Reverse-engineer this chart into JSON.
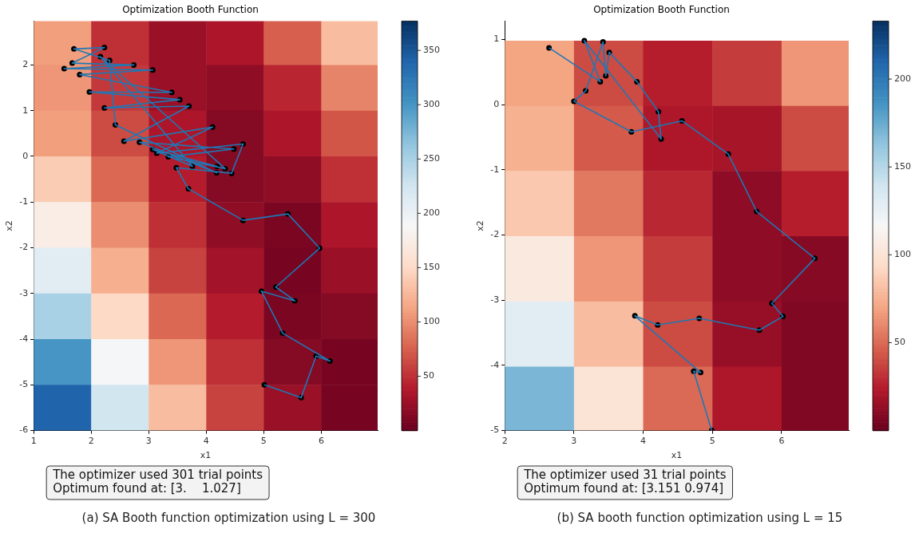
{
  "chart_data": [
    {
      "type": "heatmap",
      "title": "Optimization Booth Function",
      "xlabel": "x1",
      "ylabel": "x2",
      "xlim": [
        1,
        6.98
      ],
      "ylim": [
        -6,
        2.96
      ],
      "xticks": [
        1,
        2,
        3,
        4,
        5,
        6
      ],
      "yticks": [
        -6,
        -5,
        -4,
        -3,
        -2,
        -1,
        0,
        1,
        2
      ],
      "x": [
        1.5,
        2.5,
        3.5,
        4.5,
        5.5,
        6.5
      ],
      "y": [
        2.5,
        1.5,
        0.5,
        -0.5,
        -1.5,
        -2.5,
        -3.5,
        -4.5,
        -5.5
      ],
      "cells": [
        [
          110,
          50,
          25,
          35,
          75,
          130
        ],
        [
          105,
          55,
          25,
          20,
          45,
          95
        ],
        [
          110,
          65,
          35,
          15,
          35,
          70
        ],
        [
          140,
          80,
          40,
          15,
          20,
          50
        ],
        [
          175,
          100,
          50,
          20,
          10,
          35
        ],
        [
          210,
          120,
          60,
          30,
          8,
          25
        ],
        [
          250,
          150,
          80,
          40,
          10,
          15
        ],
        [
          300,
          190,
          105,
          50,
          15,
          8
        ],
        [
          340,
          225,
          130,
          60,
          25,
          8
        ]
      ],
      "clim": [
        0,
        377
      ],
      "cticks": [
        50,
        100,
        150,
        200,
        250,
        300,
        350
      ],
      "grid": false,
      "legend": false,
      "series": [
        {
          "type": "scatter",
          "color": "#000000",
          "marker": "circle",
          "x": [
            5.01,
            5.65,
            5.91,
            6.15,
            5.33,
            4.96,
            5.54,
            5.21,
            5.97,
            5.42,
            4.64,
            3.69,
            3.48,
            4.44,
            4.64,
            3.14,
            4.11,
            2.57,
            3.7,
            2.23,
            3.54,
            1.97,
            3.4,
            1.8,
            3.07,
            1.53,
            2.74,
            1.67,
            2.23,
            1.7,
            2.32,
            2.42,
            4.18,
            2.84,
            4.48,
            3.34,
            4.33,
            2.16,
            3.76,
            3.07,
            4.19
          ],
          "values": [
            -5.0,
            -5.28,
            -4.37,
            -4.48,
            -3.87,
            -2.95,
            -3.16,
            -2.86,
            -2.01,
            -1.26,
            -1.4,
            -0.71,
            -0.25,
            -0.37,
            0.27,
            0.07,
            0.64,
            0.33,
            1.1,
            1.06,
            1.24,
            1.41,
            1.4,
            1.79,
            1.89,
            1.92,
            2.0,
            2.04,
            2.38,
            2.35,
            2.1,
            0.69,
            -0.36,
            0.31,
            0.16,
            -0.01,
            -0.27,
            2.18,
            -0.22,
            0.15,
            -0.22
          ]
        },
        {
          "type": "line",
          "color": "#1f77b4",
          "marker": "none",
          "x": [
            5.01,
            5.65,
            5.91,
            6.15,
            5.33,
            4.96,
            5.54,
            5.21,
            5.97,
            5.42,
            4.64,
            3.69,
            3.48,
            4.44,
            4.64,
            3.14,
            4.11,
            2.57,
            3.7,
            2.23,
            3.54,
            1.97,
            3.4,
            1.8,
            3.07,
            1.53,
            2.74,
            1.67,
            2.23,
            1.7,
            2.32,
            2.42,
            4.18,
            2.84,
            4.48,
            3.34,
            4.33,
            2.16,
            3.76,
            3.07,
            4.19
          ],
          "values": [
            -5.0,
            -5.28,
            -4.37,
            -4.48,
            -3.87,
            -2.95,
            -3.16,
            -2.86,
            -2.01,
            -1.26,
            -1.4,
            -0.71,
            -0.25,
            -0.37,
            0.27,
            0.07,
            0.64,
            0.33,
            1.1,
            1.06,
            1.24,
            1.41,
            1.4,
            1.79,
            1.89,
            1.92,
            2.0,
            2.04,
            2.38,
            2.35,
            2.1,
            0.69,
            -0.36,
            0.31,
            0.16,
            -0.01,
            -0.27,
            2.18,
            -0.22,
            0.15,
            -0.22
          ]
        }
      ],
      "annotations": [
        "The optimizer used 301 trial points\nOptimum found at: [3.    1.027]",
        "(a) SA Booth function optimization using L = 300"
      ]
    },
    {
      "type": "heatmap",
      "title": "Optimization Booth Function",
      "xlabel": "x1",
      "ylabel": "x2",
      "xlim": [
        2,
        6.97
      ],
      "ylim": [
        -5,
        1.28
      ],
      "xticks": [
        2,
        3,
        4,
        5,
        6
      ],
      "yticks": [
        -5,
        -4,
        -3,
        -2,
        -1,
        0,
        1
      ],
      "x": [
        2.5,
        3.5,
        4.5,
        5.5,
        6.5
      ],
      "y": [
        0.48,
        -0.52,
        -1.52,
        -2.52,
        -3.52,
        -4.52
      ],
      "cells": [
        [
          70,
          40,
          25,
          35,
          65
        ],
        [
          75,
          45,
          22,
          20,
          40
        ],
        [
          85,
          55,
          28,
          12,
          25
        ],
        [
          105,
          65,
          35,
          12,
          10
        ],
        [
          130,
          80,
          40,
          15,
          8
        ],
        [
          170,
          100,
          50,
          22,
          8
        ]
      ],
      "clim": [
        0,
        233
      ],
      "cticks": [
        50,
        100,
        150,
        200
      ],
      "grid": false,
      "legend": false,
      "series": [
        {
          "type": "scatter",
          "color": "#000000",
          "marker": "circle",
          "x": [
            4.99,
            4.73,
            4.83,
            3.88,
            4.21,
            4.81,
            5.68,
            6.02,
            5.86,
            6.48,
            5.64,
            5.23,
            4.56,
            3.83,
            3.0,
            3.17,
            3.42,
            3.46,
            3.51,
            3.91,
            4.22,
            4.26,
            3.15,
            3.38,
            2.64
          ],
          "values": [
            -5.0,
            -4.09,
            -4.11,
            -3.24,
            -3.38,
            -3.28,
            -3.46,
            -3.25,
            -3.05,
            -2.36,
            -1.64,
            -0.76,
            -0.25,
            -0.42,
            0.05,
            0.21,
            0.96,
            0.44,
            0.8,
            0.35,
            -0.11,
            -0.53,
            0.98,
            0.35,
            0.87
          ]
        },
        {
          "type": "line",
          "color": "#1f77b4",
          "marker": "none",
          "x": [
            4.99,
            4.73,
            4.83,
            3.88,
            4.21,
            4.81,
            5.68,
            6.02,
            5.86,
            6.48,
            5.64,
            5.23,
            4.56,
            3.83,
            3.0,
            3.17,
            3.42,
            3.46,
            3.51,
            3.91,
            4.22,
            4.26,
            3.15,
            3.38,
            2.64
          ],
          "values": [
            -5.0,
            -4.09,
            -4.11,
            -3.24,
            -3.38,
            -3.28,
            -3.46,
            -3.25,
            -3.05,
            -2.36,
            -1.64,
            -0.76,
            -0.25,
            -0.42,
            0.05,
            0.21,
            0.96,
            0.44,
            0.8,
            0.35,
            -0.11,
            -0.53,
            0.98,
            0.35,
            0.87
          ]
        }
      ],
      "annotations": [
        "The optimizer used 31 trial points\nOptimum found at: [3.151 0.974]",
        "(b) SA booth function optimization using L = 15"
      ]
    }
  ]
}
